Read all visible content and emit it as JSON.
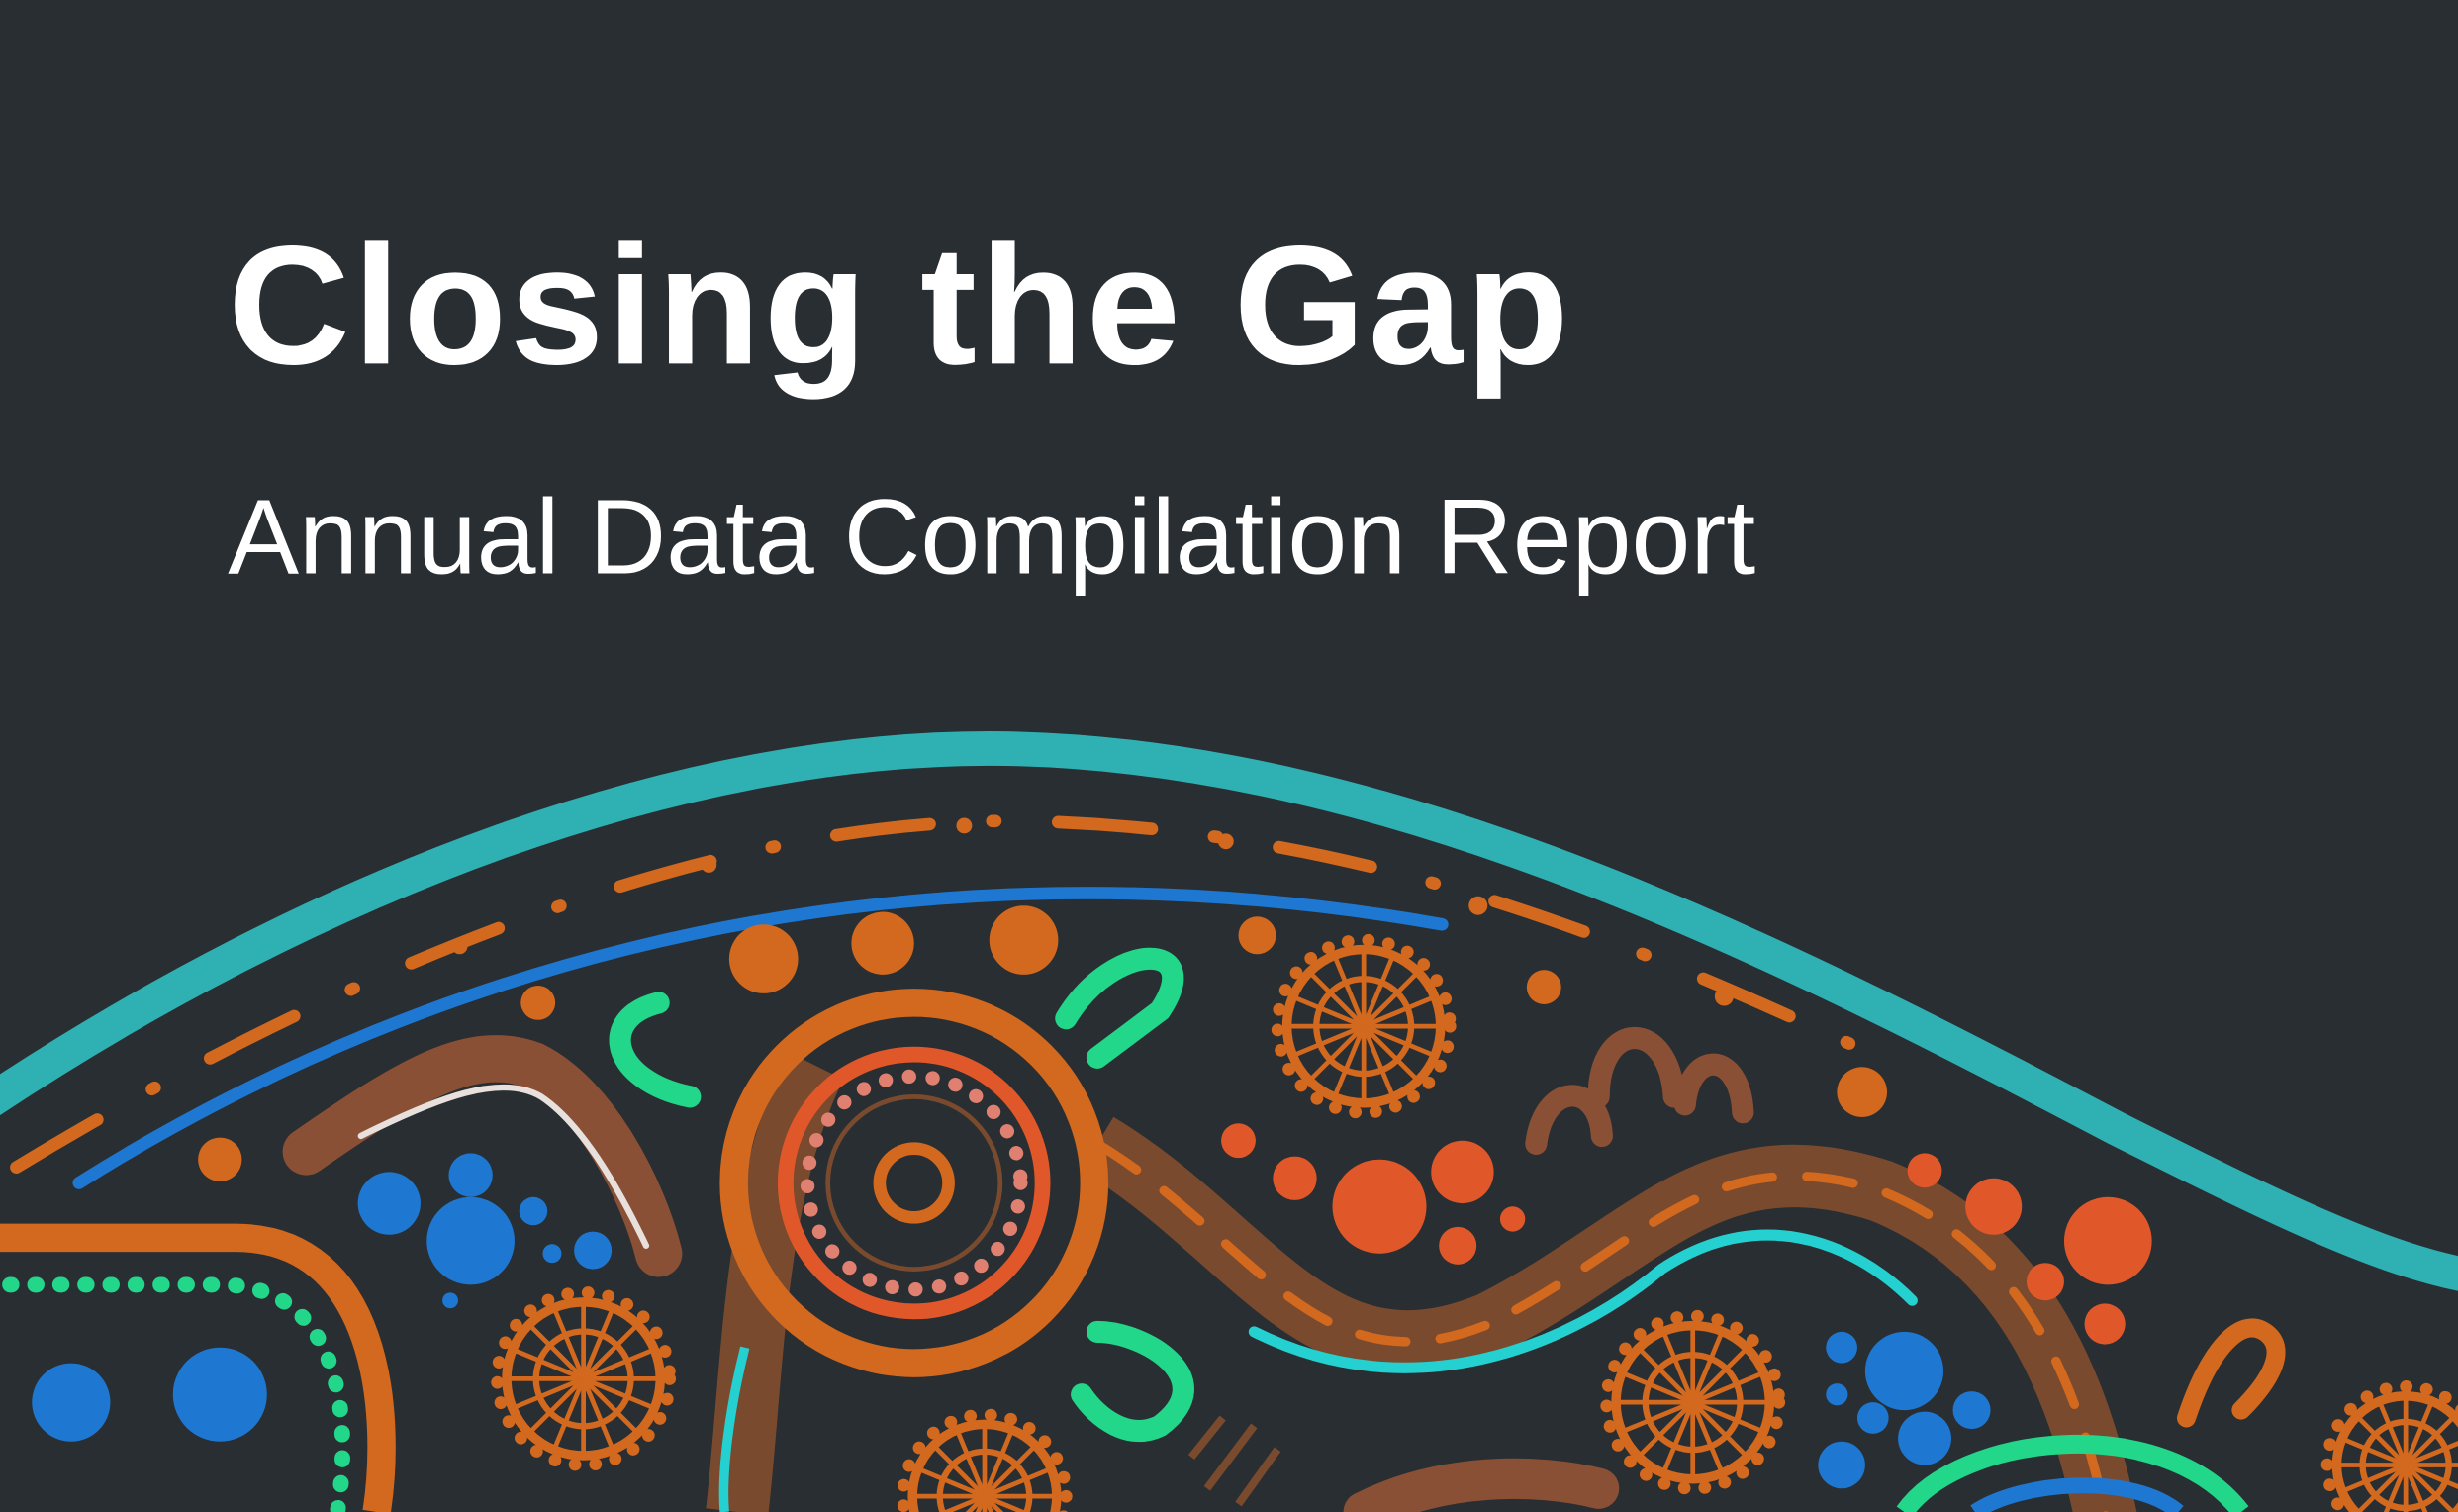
{
  "title": "Closing the Gap",
  "subtitle": "Annual Data Compilation Report"
}
